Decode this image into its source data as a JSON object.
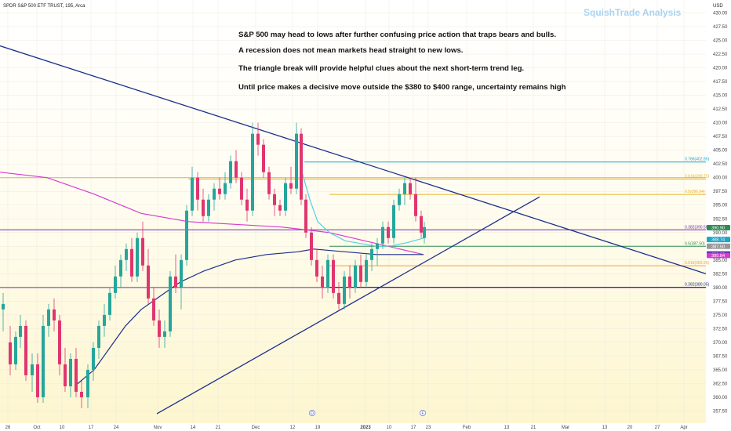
{
  "header": {
    "instrument": "SPDR S&P 500 ETF TRUST, 195, Arca",
    "currency": "USD",
    "watermark": "SquishTrade Analysis"
  },
  "annotations": [
    "S&P 500 may head to lows after further confusing price action that traps bears and bulls.",
    "A recession does not mean markets head straight to new lows.",
    "The triangle break will provide helpful clues about the next short-term trend leg.",
    "Until price makes a decisive move outside the $380 to $400 range, uncertainty remains high"
  ],
  "colors": {
    "bull": "#26a69a",
    "bear": "#e0366f",
    "trendline": "#1c2f8c",
    "ma_pink": "#d63bd1",
    "ma_cyan": "#4fd1e6",
    "ma_navy": "#1c2f8c",
    "fib_teal": "#21a5c4",
    "fib_gold": "#e6b32e",
    "fib_green": "#2e8b57",
    "fib_orange": "#f2a33a",
    "purple_line": "#6a2fb0"
  },
  "chart_data": {
    "type": "candlestick",
    "title": "SPDR S&P 500 ETF TRUST, 195, Arca",
    "ylim": [
      356,
      431
    ],
    "y_ticks": [
      "357.50",
      "360.00",
      "362.50",
      "365.00",
      "367.50",
      "370.00",
      "372.50",
      "375.00",
      "377.50",
      "380.00",
      "382.50",
      "385.00",
      "387.50",
      "390.00",
      "392.50",
      "395.00",
      "397.50",
      "400.00",
      "402.50",
      "405.00",
      "407.50",
      "410.00",
      "412.50",
      "415.00",
      "417.50",
      "420.00",
      "422.50",
      "425.00",
      "427.50",
      "430.00"
    ],
    "x_ticks": [
      "26",
      "Oct",
      "10",
      "17",
      "24",
      "Nov",
      "14",
      "21",
      "Dec",
      "12",
      "19",
      "2023",
      "10",
      "17",
      "23",
      "Feb",
      "13",
      "21",
      "Mar",
      "13",
      "20",
      "27",
      "Apr"
    ],
    "x_ticks_bold": [
      "2023"
    ],
    "price_labels": [
      {
        "text": "390.90",
        "value": 390.9,
        "color": "#2e8b57"
      },
      {
        "text": "388.74",
        "value": 388.74,
        "color": "#21a5c4"
      },
      {
        "text": "387.50",
        "value": 387.5,
        "color": "#999999"
      },
      {
        "text": "386.08",
        "value": 386.08,
        "color": "#1c2f8c"
      },
      {
        "text": "385.84",
        "value": 385.84,
        "color": "#d63bd1"
      }
    ],
    "fib_levels": [
      {
        "label": "0.786(402.85)",
        "value": 402.85,
        "color": "#21a5c4"
      },
      {
        "label": "0.618(399.75)",
        "value": 399.75,
        "color": "#e6b32e"
      },
      {
        "label": "0.5(396.94)",
        "value": 396.94,
        "color": "#e6b32e"
      },
      {
        "label": "0.382(390.50)",
        "value": 390.5,
        "color": "#6a2fb0"
      },
      {
        "label": "0.5(387.50)",
        "value": 387.5,
        "color": "#2e8b57"
      },
      {
        "label": "0.618(383.95)",
        "value": 383.95,
        "color": "#f2a33a"
      },
      {
        "label": "0.382(380.05)",
        "value": 380.05,
        "color": "#1c2f8c"
      }
    ],
    "horizontal_lines": [
      {
        "value": 400.0,
        "color": "#e6b32e"
      },
      {
        "value": 380.0,
        "color": "#6a2fb0"
      }
    ],
    "trendlines": [
      {
        "name": "descending",
        "from": [
          0,
          424.0
        ],
        "to": [
          900,
          382.5
        ]
      },
      {
        "name": "ascending",
        "from": [
          200,
          357.0
        ],
        "to": [
          688,
          396.5
        ]
      }
    ],
    "marker_labels": [
      "D",
      "F"
    ],
    "candles": [
      {
        "x": 4,
        "o": 376,
        "h": 379,
        "l": 372,
        "c": 377
      },
      {
        "x": 13,
        "o": 370,
        "h": 373,
        "l": 364,
        "c": 366
      },
      {
        "x": 20,
        "o": 366,
        "h": 372,
        "l": 365,
        "c": 371
      },
      {
        "x": 26,
        "o": 371,
        "h": 375,
        "l": 369,
        "c": 373
      },
      {
        "x": 33,
        "o": 373,
        "h": 374,
        "l": 363,
        "c": 364
      },
      {
        "x": 41,
        "o": 364,
        "h": 368,
        "l": 361,
        "c": 366
      },
      {
        "x": 48,
        "o": 366,
        "h": 368,
        "l": 359,
        "c": 360
      },
      {
        "x": 55,
        "o": 360,
        "h": 375,
        "l": 359,
        "c": 373
      },
      {
        "x": 62,
        "o": 373,
        "h": 377,
        "l": 371,
        "c": 376
      },
      {
        "x": 69,
        "o": 376,
        "h": 378,
        "l": 372,
        "c": 374
      },
      {
        "x": 76,
        "o": 374,
        "h": 375,
        "l": 364,
        "c": 366
      },
      {
        "x": 83,
        "o": 366,
        "h": 369,
        "l": 361,
        "c": 362
      },
      {
        "x": 90,
        "o": 362,
        "h": 368,
        "l": 360,
        "c": 367
      },
      {
        "x": 97,
        "o": 367,
        "h": 369,
        "l": 360,
        "c": 361
      },
      {
        "x": 104,
        "o": 361,
        "h": 363,
        "l": 358,
        "c": 360
      },
      {
        "x": 112,
        "o": 360,
        "h": 366,
        "l": 358,
        "c": 365
      },
      {
        "x": 119,
        "o": 365,
        "h": 370,
        "l": 363,
        "c": 369
      },
      {
        "x": 126,
        "o": 369,
        "h": 374,
        "l": 367,
        "c": 373
      },
      {
        "x": 133,
        "o": 373,
        "h": 377,
        "l": 371,
        "c": 375
      },
      {
        "x": 140,
        "o": 375,
        "h": 380,
        "l": 374,
        "c": 379
      },
      {
        "x": 147,
        "o": 379,
        "h": 384,
        "l": 378,
        "c": 382
      },
      {
        "x": 154,
        "o": 382,
        "h": 386,
        "l": 380,
        "c": 385
      },
      {
        "x": 161,
        "o": 385,
        "h": 388,
        "l": 383,
        "c": 387
      },
      {
        "x": 168,
        "o": 387,
        "h": 389,
        "l": 381,
        "c": 382
      },
      {
        "x": 175,
        "o": 382,
        "h": 390,
        "l": 381,
        "c": 389
      },
      {
        "x": 182,
        "o": 389,
        "h": 392,
        "l": 383,
        "c": 384
      },
      {
        "x": 189,
        "o": 384,
        "h": 387,
        "l": 377,
        "c": 378
      },
      {
        "x": 196,
        "o": 378,
        "h": 380,
        "l": 373,
        "c": 374
      },
      {
        "x": 203,
        "o": 374,
        "h": 376,
        "l": 369,
        "c": 371
      },
      {
        "x": 210,
        "o": 371,
        "h": 374,
        "l": 369,
        "c": 372
      },
      {
        "x": 217,
        "o": 372,
        "h": 383,
        "l": 371,
        "c": 382
      },
      {
        "x": 224,
        "o": 382,
        "h": 386,
        "l": 379,
        "c": 380
      },
      {
        "x": 231,
        "o": 380,
        "h": 386,
        "l": 376,
        "c": 385
      },
      {
        "x": 238,
        "o": 385,
        "h": 395,
        "l": 384,
        "c": 394
      },
      {
        "x": 245,
        "o": 394,
        "h": 402,
        "l": 393,
        "c": 400
      },
      {
        "x": 252,
        "o": 400,
        "h": 401,
        "l": 394,
        "c": 396
      },
      {
        "x": 259,
        "o": 396,
        "h": 398,
        "l": 392,
        "c": 393
      },
      {
        "x": 266,
        "o": 393,
        "h": 397,
        "l": 392,
        "c": 396
      },
      {
        "x": 273,
        "o": 396,
        "h": 399,
        "l": 394,
        "c": 398
      },
      {
        "x": 280,
        "o": 398,
        "h": 400,
        "l": 396,
        "c": 397
      },
      {
        "x": 287,
        "o": 397,
        "h": 401,
        "l": 396,
        "c": 399
      },
      {
        "x": 294,
        "o": 399,
        "h": 404,
        "l": 398,
        "c": 403
      },
      {
        "x": 301,
        "o": 403,
        "h": 405,
        "l": 399,
        "c": 400
      },
      {
        "x": 308,
        "o": 400,
        "h": 401,
        "l": 395,
        "c": 396
      },
      {
        "x": 315,
        "o": 396,
        "h": 398,
        "l": 392,
        "c": 394
      },
      {
        "x": 322,
        "o": 394,
        "h": 410,
        "l": 393,
        "c": 408
      },
      {
        "x": 329,
        "o": 408,
        "h": 410,
        "l": 404,
        "c": 406
      },
      {
        "x": 336,
        "o": 406,
        "h": 407,
        "l": 400,
        "c": 401
      },
      {
        "x": 343,
        "o": 401,
        "h": 402,
        "l": 396,
        "c": 397
      },
      {
        "x": 350,
        "o": 397,
        "h": 398,
        "l": 393,
        "c": 395
      },
      {
        "x": 357,
        "o": 395,
        "h": 396,
        "l": 393,
        "c": 394
      },
      {
        "x": 364,
        "o": 394,
        "h": 400,
        "l": 393,
        "c": 399
      },
      {
        "x": 371,
        "o": 399,
        "h": 402,
        "l": 397,
        "c": 398
      },
      {
        "x": 378,
        "o": 398,
        "h": 410,
        "l": 397,
        "c": 408
      },
      {
        "x": 384,
        "o": 408,
        "h": 409,
        "l": 395,
        "c": 396
      },
      {
        "x": 390,
        "o": 396,
        "h": 397,
        "l": 389,
        "c": 390
      },
      {
        "x": 397,
        "o": 390,
        "h": 391,
        "l": 384,
        "c": 385
      },
      {
        "x": 404,
        "o": 385,
        "h": 387,
        "l": 381,
        "c": 382
      },
      {
        "x": 411,
        "o": 382,
        "h": 384,
        "l": 378,
        "c": 380
      },
      {
        "x": 418,
        "o": 380,
        "h": 386,
        "l": 379,
        "c": 385
      },
      {
        "x": 425,
        "o": 385,
        "h": 386,
        "l": 378,
        "c": 379
      },
      {
        "x": 432,
        "o": 379,
        "h": 381,
        "l": 376,
        "c": 377
      },
      {
        "x": 439,
        "o": 377,
        "h": 383,
        "l": 376,
        "c": 382
      },
      {
        "x": 446,
        "o": 382,
        "h": 384,
        "l": 378,
        "c": 380
      },
      {
        "x": 453,
        "o": 380,
        "h": 385,
        "l": 379,
        "c": 384
      },
      {
        "x": 460,
        "o": 384,
        "h": 386,
        "l": 380,
        "c": 381
      },
      {
        "x": 467,
        "o": 381,
        "h": 386,
        "l": 380,
        "c": 385
      },
      {
        "x": 474,
        "o": 385,
        "h": 388,
        "l": 383,
        "c": 387
      },
      {
        "x": 481,
        "o": 387,
        "h": 389,
        "l": 384,
        "c": 388
      },
      {
        "x": 488,
        "o": 388,
        "h": 392,
        "l": 387,
        "c": 391
      },
      {
        "x": 495,
        "o": 391,
        "h": 392,
        "l": 388,
        "c": 389
      },
      {
        "x": 502,
        "o": 389,
        "h": 396,
        "l": 388,
        "c": 395
      },
      {
        "x": 509,
        "o": 395,
        "h": 398,
        "l": 394,
        "c": 397
      },
      {
        "x": 516,
        "o": 397,
        "h": 400,
        "l": 395,
        "c": 399
      },
      {
        "x": 523,
        "o": 399,
        "h": 400,
        "l": 396,
        "c": 397
      },
      {
        "x": 530,
        "o": 397,
        "h": 400,
        "l": 392,
        "c": 393
      },
      {
        "x": 537,
        "o": 393,
        "h": 394,
        "l": 389,
        "c": 390
      },
      {
        "x": 541,
        "o": 389,
        "h": 392,
        "l": 388,
        "c": 391
      }
    ],
    "moving_averages": [
      {
        "name": "MA pink",
        "color": "#d63bd1",
        "points": [
          [
            0,
            401
          ],
          [
            60,
            400
          ],
          [
            120,
            397
          ],
          [
            180,
            393.5
          ],
          [
            240,
            392
          ],
          [
            300,
            391.5
          ],
          [
            360,
            391
          ],
          [
            420,
            390
          ],
          [
            480,
            388
          ],
          [
            540,
            386
          ]
        ]
      },
      {
        "name": "MA cyan",
        "color": "#4fd1e6",
        "points": [
          [
            385,
            401
          ],
          [
            395,
            396
          ],
          [
            405,
            392
          ],
          [
            420,
            390
          ],
          [
            440,
            388.5
          ],
          [
            460,
            388
          ],
          [
            480,
            387.5
          ],
          [
            500,
            387.6
          ],
          [
            520,
            388.2
          ],
          [
            540,
            389
          ]
        ]
      },
      {
        "name": "MA navy",
        "color": "#1c2f8c",
        "points": [
          [
            95,
            362
          ],
          [
            120,
            365
          ],
          [
            140,
            369
          ],
          [
            160,
            373
          ],
          [
            180,
            376
          ],
          [
            200,
            378
          ],
          [
            230,
            381
          ],
          [
            260,
            383
          ],
          [
            300,
            385
          ],
          [
            340,
            386
          ],
          [
            380,
            386.5
          ],
          [
            400,
            387
          ],
          [
            440,
            386.5
          ],
          [
            480,
            386
          ],
          [
            520,
            386
          ],
          [
            540,
            386
          ]
        ]
      }
    ]
  }
}
